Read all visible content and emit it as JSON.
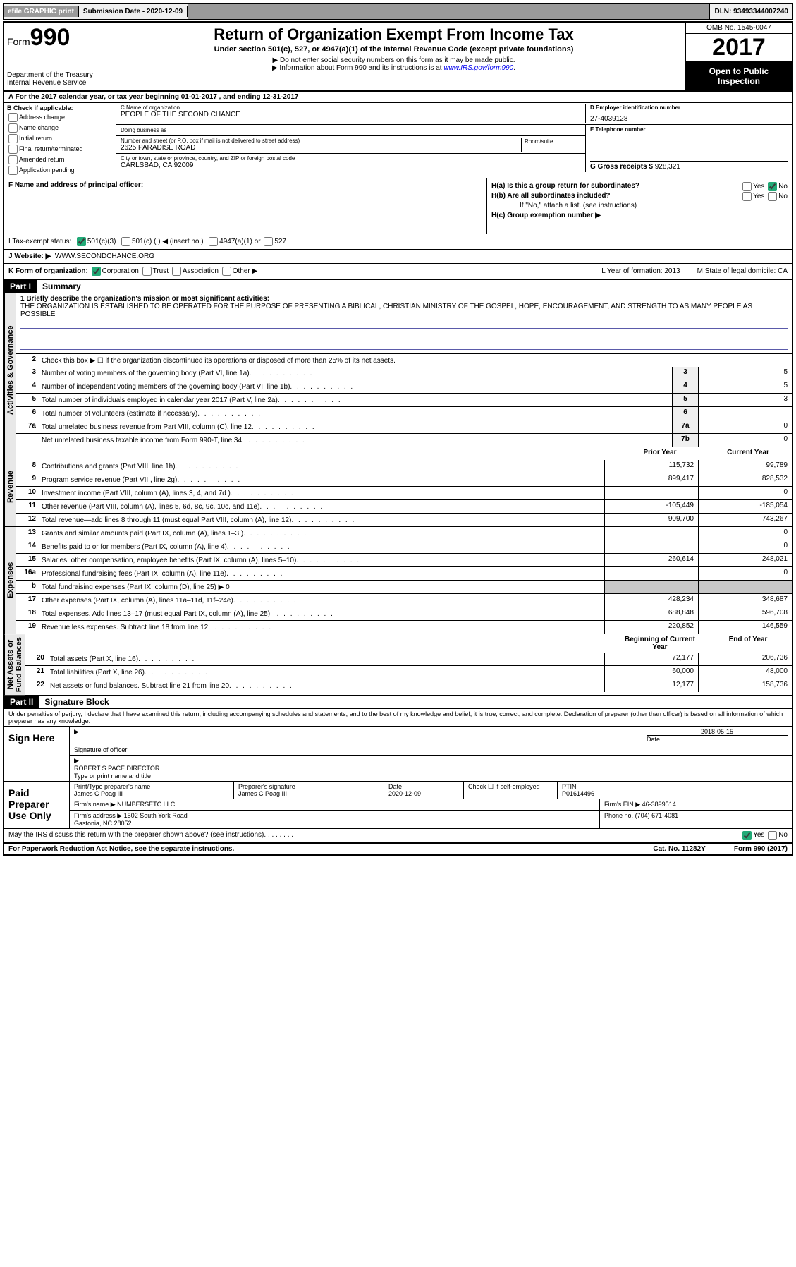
{
  "topbar": {
    "efile": "efile GRAPHIC print",
    "sub_date_lbl": "Submission Date - 2020-12-09",
    "dln": "DLN: 93493344007240"
  },
  "header": {
    "form_lbl": "Form",
    "form_no": "990",
    "dept": "Department of the Treasury\nInternal Revenue Service",
    "title": "Return of Organization Exempt From Income Tax",
    "subtitle": "Under section 501(c), 527, or 4947(a)(1) of the Internal Revenue Code (except private foundations)",
    "note1": "▶ Do not enter social security numbers on this form as it may be made public.",
    "note2_pre": "▶ Information about Form 990 and its instructions is at ",
    "note2_link": "www.IRS.gov/form990",
    "omb": "OMB No. 1545-0047",
    "year": "2017",
    "open": "Open to Public Inspection"
  },
  "rowA": "A For the 2017 calendar year, or tax year beginning 01-01-2017   , and ending 12-31-2017",
  "B": {
    "lbl": "B Check if applicable:",
    "opts": [
      "Address change",
      "Name change",
      "Initial return",
      "Final return/terminated",
      "Amended return",
      "Application pending"
    ]
  },
  "C": {
    "name_lbl": "C Name of organization",
    "name": "PEOPLE OF THE SECOND CHANCE",
    "dba_lbl": "Doing business as",
    "street_lbl": "Number and street (or P.O. box if mail is not delivered to street address)",
    "room_lbl": "Room/suite",
    "street": "2625 PARADISE ROAD",
    "city_lbl": "City or town, state or province, country, and ZIP or foreign postal code",
    "city": "CARLSBAD, CA  92009"
  },
  "D": {
    "lbl": "D Employer identification number",
    "val": "27-4039128"
  },
  "E": {
    "lbl": "E Telephone number"
  },
  "G": {
    "lbl": "G Gross receipts $",
    "val": "928,321"
  },
  "F": {
    "lbl": "F  Name and address of principal officer:"
  },
  "H": {
    "a": "H(a)  Is this a group return for subordinates?",
    "b": "H(b)  Are all subordinates included?",
    "b_note": "If \"No,\" attach a list. (see instructions)",
    "c": "H(c)  Group exemption number ▶",
    "yes": "Yes",
    "no": "No"
  },
  "I": {
    "lbl": "I   Tax-exempt status:",
    "c3": "501(c)(3)",
    "c": "501(c) (   ) ◀ (insert no.)",
    "a1": "4947(a)(1) or",
    "s527": "527"
  },
  "J": {
    "lbl": "J   Website: ▶",
    "val": "WWW.SECONDCHANCE.ORG"
  },
  "K": {
    "lbl": "K Form of organization:",
    "corp": "Corporation",
    "trust": "Trust",
    "assoc": "Association",
    "other": "Other ▶",
    "L": "L Year of formation: 2013",
    "M": "M State of legal domicile: CA"
  },
  "part1": {
    "hdr": "Part I",
    "title": "Summary",
    "l1_lbl": "1 Briefly describe the organization's mission or most significant activities:",
    "l1_txt": "THE ORGANIZATION IS ESTABLISHED TO BE OPERATED FOR THE PURPOSE OF PRESENTING A BIBLICAL, CHRISTIAN MINISTRY OF THE GOSPEL, HOPE, ENCOURAGEMENT, AND STRENGTH TO AS MANY PEOPLE AS POSSIBLE",
    "l2": "Check this box ▶ ☐ if the organization discontinued its operations or disposed of more than 25% of its net assets.",
    "lines_gov": [
      {
        "n": "3",
        "t": "Number of voting members of the governing body (Part VI, line 1a)",
        "c": "3",
        "v": "5"
      },
      {
        "n": "4",
        "t": "Number of independent voting members of the governing body (Part VI, line 1b)",
        "c": "4",
        "v": "5"
      },
      {
        "n": "5",
        "t": "Total number of individuals employed in calendar year 2017 (Part V, line 2a)",
        "c": "5",
        "v": "3"
      },
      {
        "n": "6",
        "t": "Total number of volunteers (estimate if necessary)",
        "c": "6",
        "v": ""
      },
      {
        "n": "7a",
        "t": "Total unrelated business revenue from Part VIII, column (C), line 12",
        "c": "7a",
        "v": "0"
      },
      {
        "n": "",
        "t": "Net unrelated business taxable income from Form 990-T, line 34",
        "c": "7b",
        "v": "0"
      }
    ],
    "prior": "Prior Year",
    "current": "Current Year",
    "revenue": [
      {
        "n": "8",
        "t": "Contributions and grants (Part VIII, line 1h)",
        "p": "115,732",
        "c": "99,789"
      },
      {
        "n": "9",
        "t": "Program service revenue (Part VIII, line 2g)",
        "p": "899,417",
        "c": "828,532"
      },
      {
        "n": "10",
        "t": "Investment income (Part VIII, column (A), lines 3, 4, and 7d )",
        "p": "",
        "c": "0"
      },
      {
        "n": "11",
        "t": "Other revenue (Part VIII, column (A), lines 5, 6d, 8c, 9c, 10c, and 11e)",
        "p": "-105,449",
        "c": "-185,054"
      },
      {
        "n": "12",
        "t": "Total revenue—add lines 8 through 11 (must equal Part VIII, column (A), line 12)",
        "p": "909,700",
        "c": "743,267"
      }
    ],
    "expenses": [
      {
        "n": "13",
        "t": "Grants and similar amounts paid (Part IX, column (A), lines 1–3 )",
        "p": "",
        "c": "0"
      },
      {
        "n": "14",
        "t": "Benefits paid to or for members (Part IX, column (A), line 4)",
        "p": "",
        "c": "0"
      },
      {
        "n": "15",
        "t": "Salaries, other compensation, employee benefits (Part IX, column (A), lines 5–10)",
        "p": "260,614",
        "c": "248,021"
      },
      {
        "n": "16a",
        "t": "Professional fundraising fees (Part IX, column (A), line 11e)",
        "p": "",
        "c": "0"
      },
      {
        "n": "b",
        "t": "Total fundraising expenses (Part IX, column (D), line 25) ▶ 0",
        "p": "__GREY__",
        "c": "__GREY__"
      },
      {
        "n": "17",
        "t": "Other expenses (Part IX, column (A), lines 11a–11d, 11f–24e)",
        "p": "428,234",
        "c": "348,687"
      },
      {
        "n": "18",
        "t": "Total expenses. Add lines 13–17 (must equal Part IX, column (A), line 25)",
        "p": "688,848",
        "c": "596,708"
      },
      {
        "n": "19",
        "t": "Revenue less expenses. Subtract line 18 from line 12",
        "p": "220,852",
        "c": "146,559"
      }
    ],
    "bcy": "Beginning of Current Year",
    "eoy": "End of Year",
    "net": [
      {
        "n": "20",
        "t": "Total assets (Part X, line 16)",
        "p": "72,177",
        "c": "206,736"
      },
      {
        "n": "21",
        "t": "Total liabilities (Part X, line 26)",
        "p": "60,000",
        "c": "48,000"
      },
      {
        "n": "22",
        "t": "Net assets or fund balances. Subtract line 21 from line 20",
        "p": "12,177",
        "c": "158,736"
      }
    ],
    "tabs": {
      "gov": "Activities & Governance",
      "rev": "Revenue",
      "exp": "Expenses",
      "net": "Net Assets or\nFund Balances"
    }
  },
  "part2": {
    "hdr": "Part II",
    "title": "Signature Block",
    "decl": "Under penalties of perjury, I declare that I have examined this return, including accompanying schedules and statements, and to the best of my knowledge and belief, it is true, correct, and complete. Declaration of preparer (other than officer) is based on all information of which preparer has any knowledge.",
    "sign_here": "Sign Here",
    "sig_officer": "Signature of officer",
    "date_lbl": "Date",
    "date": "2018-05-15",
    "officer_name": "ROBERT S PACE  DIRECTOR",
    "officer_sub": "Type or print name and title",
    "paid": "Paid Preparer Use Only",
    "prep_name_lbl": "Print/Type preparer's name",
    "prep_name": "James C Poag III",
    "prep_sig_lbl": "Preparer's signature",
    "prep_sig": "James C Poag III",
    "prep_date_lbl": "Date",
    "prep_date": "2020-12-09",
    "self_emp": "Check ☐ if self-employed",
    "ptin_lbl": "PTIN",
    "ptin": "P01614496",
    "firm_name_lbl": "Firm's name   ▶",
    "firm_name": "NUMBERSETC LLC",
    "firm_ein_lbl": "Firm's EIN ▶",
    "firm_ein": "46-3899514",
    "firm_addr_lbl": "Firm's address ▶",
    "firm_addr": "1502 South York Road\nGastonia, NC  28052",
    "phone_lbl": "Phone no.",
    "phone": "(704) 671-4081",
    "discuss": "May the IRS discuss this return with the preparer shown above? (see instructions)",
    "yes": "Yes",
    "no": "No"
  },
  "footer": {
    "pra": "For Paperwork Reduction Act Notice, see the separate instructions.",
    "cat": "Cat. No. 11282Y",
    "form": "Form 990 (2017)"
  }
}
